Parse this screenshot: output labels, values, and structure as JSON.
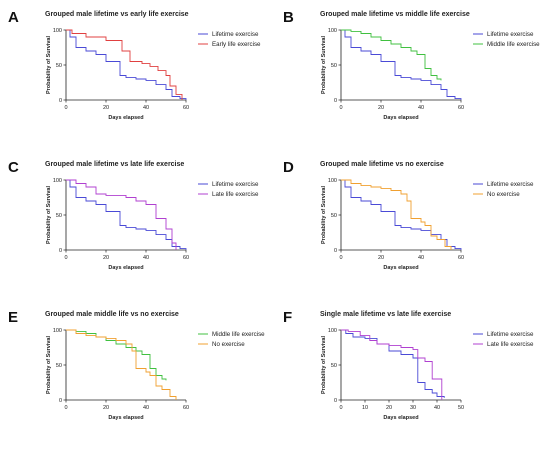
{
  "chart_data": [
    {
      "letter": "A",
      "type": "line",
      "title": "Grouped male lifetime vs early life exercise",
      "xlabel": "Days elapsed",
      "ylabel": "Probability of Survival",
      "xlim": [
        0,
        60
      ],
      "ylim": [
        0,
        100
      ],
      "xticks": [
        "0",
        "20",
        "40",
        "60"
      ],
      "yticks": [
        "0",
        "50",
        "100"
      ],
      "legend": "right",
      "series": [
        {
          "name": "Lifetime exercise",
          "color": "#4a4ad6",
          "x": [
            0,
            2,
            5,
            10,
            15,
            20,
            27,
            30,
            35,
            40,
            45,
            50,
            53,
            57,
            60
          ],
          "y": [
            100,
            90,
            75,
            70,
            65,
            55,
            35,
            32,
            30,
            28,
            22,
            15,
            5,
            2,
            0
          ]
        },
        {
          "name": "Early life exercise",
          "color": "#e04040",
          "x": [
            0,
            3,
            10,
            20,
            28,
            32,
            38,
            42,
            46,
            50,
            52,
            55,
            58
          ],
          "y": [
            100,
            95,
            90,
            85,
            70,
            55,
            52,
            48,
            42,
            35,
            20,
            8,
            0
          ]
        }
      ]
    },
    {
      "letter": "B",
      "type": "line",
      "title": "Grouped male lifetime vs middle life exercise",
      "xlabel": "Days elapsed",
      "ylabel": "Probability of Survival",
      "xlim": [
        0,
        60
      ],
      "ylim": [
        0,
        100
      ],
      "xticks": [
        "0",
        "20",
        "40",
        "60"
      ],
      "yticks": [
        "0",
        "50",
        "100"
      ],
      "legend": "right",
      "series": [
        {
          "name": "Lifetime exercise",
          "color": "#4a4ad6",
          "x": [
            0,
            2,
            5,
            10,
            15,
            20,
            27,
            30,
            35,
            40,
            45,
            50,
            53,
            57,
            60
          ],
          "y": [
            100,
            90,
            75,
            70,
            65,
            55,
            35,
            32,
            30,
            28,
            22,
            15,
            5,
            2,
            0
          ]
        },
        {
          "name": "Middle life exercise",
          "color": "#40c040",
          "x": [
            0,
            5,
            10,
            15,
            20,
            25,
            30,
            35,
            38,
            42,
            45,
            48,
            50
          ],
          "y": [
            100,
            98,
            95,
            90,
            85,
            80,
            75,
            70,
            65,
            45,
            35,
            30,
            28
          ]
        }
      ]
    },
    {
      "letter": "C",
      "type": "line",
      "title": "Grouped male lifetime vs late life exercise",
      "xlabel": "Days elapsed",
      "ylabel": "Probability of Survival",
      "xlim": [
        0,
        60
      ],
      "ylim": [
        0,
        100
      ],
      "xticks": [
        "0",
        "20",
        "40",
        "60"
      ],
      "yticks": [
        "0",
        "50",
        "100"
      ],
      "legend": "right",
      "series": [
        {
          "name": "Lifetime exercise",
          "color": "#4a4ad6",
          "x": [
            0,
            2,
            5,
            10,
            15,
            20,
            27,
            30,
            35,
            40,
            45,
            50,
            53,
            57,
            60
          ],
          "y": [
            100,
            90,
            75,
            70,
            65,
            55,
            35,
            32,
            30,
            28,
            22,
            15,
            5,
            2,
            0
          ]
        },
        {
          "name": "Late life exercise",
          "color": "#b040d0",
          "x": [
            0,
            5,
            10,
            15,
            20,
            25,
            30,
            35,
            40,
            45,
            50,
            53,
            55
          ],
          "y": [
            100,
            95,
            90,
            80,
            78,
            78,
            75,
            70,
            65,
            45,
            30,
            10,
            0
          ]
        }
      ]
    },
    {
      "letter": "D",
      "type": "line",
      "title": "Grouped male lifetime vs no exercise",
      "xlabel": "Days elapsed",
      "ylabel": "Probability of Survival",
      "xlim": [
        0,
        60
      ],
      "ylim": [
        0,
        100
      ],
      "xticks": [
        "0",
        "20",
        "40",
        "60"
      ],
      "yticks": [
        "0",
        "50",
        "100"
      ],
      "legend": "right",
      "series": [
        {
          "name": "Lifetime exercise",
          "color": "#4a4ad6",
          "x": [
            0,
            2,
            5,
            10,
            15,
            20,
            27,
            30,
            35,
            40,
            45,
            50,
            53,
            57,
            60
          ],
          "y": [
            100,
            90,
            75,
            70,
            65,
            55,
            35,
            32,
            30,
            28,
            22,
            15,
            5,
            2,
            0
          ]
        },
        {
          "name": "No exercise",
          "color": "#f0a030",
          "x": [
            0,
            5,
            10,
            15,
            20,
            25,
            30,
            33,
            35,
            40,
            42,
            45,
            48,
            52,
            55
          ],
          "y": [
            100,
            95,
            92,
            90,
            88,
            85,
            80,
            70,
            45,
            40,
            35,
            20,
            15,
            5,
            0
          ]
        }
      ]
    },
    {
      "letter": "E",
      "type": "line",
      "title": "Grouped male middle life vs no exercise",
      "xlabel": "Days elapsed",
      "ylabel": "Probability of Survival",
      "xlim": [
        0,
        60
      ],
      "ylim": [
        0,
        100
      ],
      "xticks": [
        "0",
        "20",
        "40",
        "60"
      ],
      "yticks": [
        "0",
        "50",
        "100"
      ],
      "legend": "right",
      "series": [
        {
          "name": "Middle life exercise",
          "color": "#40c040",
          "x": [
            0,
            5,
            10,
            15,
            20,
            25,
            30,
            35,
            38,
            42,
            45,
            48,
            50
          ],
          "y": [
            100,
            98,
            95,
            90,
            85,
            80,
            75,
            70,
            65,
            45,
            35,
            30,
            28
          ]
        },
        {
          "name": "No exercise",
          "color": "#f0a030",
          "x": [
            0,
            5,
            10,
            15,
            20,
            25,
            30,
            33,
            35,
            40,
            42,
            45,
            48,
            52,
            55
          ],
          "y": [
            100,
            95,
            92,
            90,
            88,
            85,
            80,
            70,
            45,
            40,
            35,
            20,
            15,
            5,
            0
          ]
        }
      ]
    },
    {
      "letter": "F",
      "type": "line",
      "title": "Single male lifetime vs late life exercise",
      "xlabel": "Days elapsed",
      "ylabel": "Probability of Survival",
      "xlim": [
        0,
        50
      ],
      "ylim": [
        0,
        100
      ],
      "xticks": [
        "0",
        "10",
        "20",
        "30",
        "40",
        "50"
      ],
      "yticks": [
        "0",
        "50",
        "100"
      ],
      "legend": "right",
      "series": [
        {
          "name": "Lifetime exercise",
          "color": "#4a4ad6",
          "x": [
            0,
            2,
            5,
            10,
            15,
            20,
            25,
            30,
            32,
            35,
            38,
            40,
            43
          ],
          "y": [
            100,
            95,
            90,
            88,
            80,
            70,
            65,
            60,
            25,
            15,
            10,
            5,
            3
          ]
        },
        {
          "name": "Late life exercise",
          "color": "#b040d0",
          "x": [
            0,
            3,
            8,
            12,
            15,
            20,
            25,
            30,
            32,
            35,
            38,
            42
          ],
          "y": [
            100,
            98,
            92,
            85,
            80,
            78,
            75,
            72,
            60,
            55,
            30,
            0
          ]
        }
      ]
    }
  ]
}
